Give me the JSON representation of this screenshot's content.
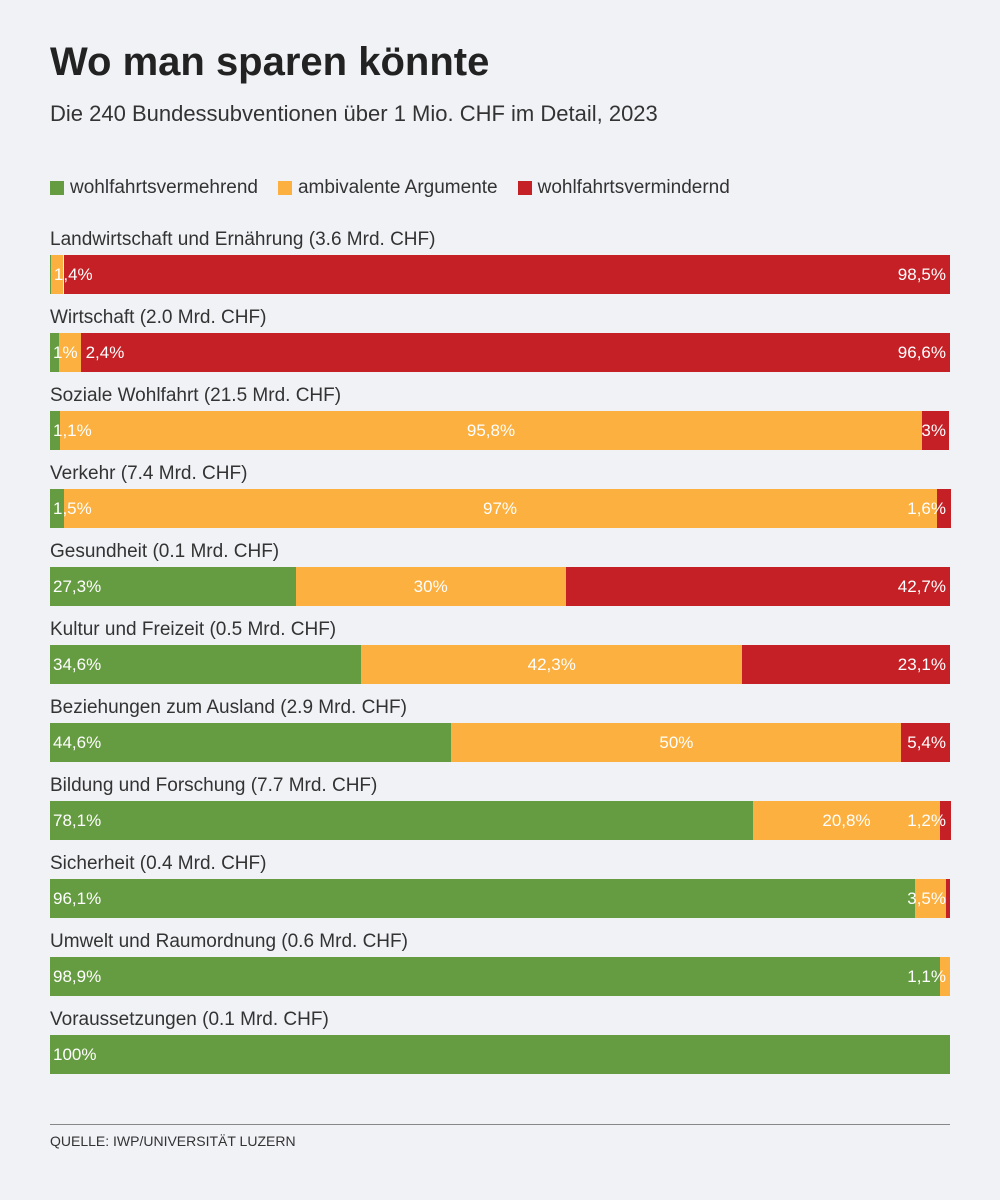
{
  "chart_data": {
    "type": "bar",
    "orientation": "horizontal",
    "stacked": "100%",
    "title": "Wo man sparen könnte",
    "subtitle": "Die 240 Bundessubventionen über 1 Mio. CHF im Detail, 2023",
    "legend_position": "top-left",
    "series": [
      {
        "name": "wohlfahrtsvermehrend",
        "color": "#659c41"
      },
      {
        "name": "ambivalente Argumente",
        "color": "#fbb040"
      },
      {
        "name": "wohlfahrtsvermindernd",
        "color": "#c42026"
      }
    ],
    "categories": [
      {
        "label": "Landwirtschaft und Ernährung (3.6 Mrd. CHF)",
        "values": [
          0.1,
          1.4,
          98.5
        ],
        "labels": [
          null,
          "1,4%",
          "98,5%"
        ]
      },
      {
        "label": "Wirtschaft (2.0 Mrd. CHF)",
        "values": [
          1,
          2.4,
          96.6
        ],
        "labels": [
          "1%",
          "2,4%",
          "96,6%"
        ]
      },
      {
        "label": "Soziale Wohlfahrt (21.5 Mrd. CHF)",
        "values": [
          1.1,
          95.8,
          3
        ],
        "labels": [
          "1,1%",
          "95,8%",
          "3%"
        ]
      },
      {
        "label": "Verkehr (7.4 Mrd. CHF)",
        "values": [
          1.5,
          97,
          1.6
        ],
        "labels": [
          "1,5%",
          "97%",
          "1,6%"
        ]
      },
      {
        "label": "Gesundheit (0.1 Mrd. CHF)",
        "values": [
          27.3,
          30,
          42.7
        ],
        "labels": [
          "27,3%",
          "30%",
          "42,7%"
        ]
      },
      {
        "label": "Kultur und Freizeit (0.5 Mrd. CHF)",
        "values": [
          34.6,
          42.3,
          23.1
        ],
        "labels": [
          "34,6%",
          "42,3%",
          "23,1%"
        ]
      },
      {
        "label": "Beziehungen zum Ausland (2.9 Mrd. CHF)",
        "values": [
          44.6,
          50,
          5.4
        ],
        "labels": [
          "44,6%",
          "50%",
          "5,4%"
        ]
      },
      {
        "label": "Bildung und Forschung (7.7 Mrd. CHF)",
        "values": [
          78.1,
          20.8,
          1.2
        ],
        "labels": [
          "78,1%",
          "20,8%",
          "1,2%"
        ]
      },
      {
        "label": "Sicherheit (0.4 Mrd. CHF)",
        "values": [
          96.1,
          3.5,
          0.4
        ],
        "labels": [
          "96,1%",
          "3,5%",
          null
        ]
      },
      {
        "label": "Umwelt und Raumordnung (0.6 Mrd. CHF)",
        "values": [
          98.9,
          1.1,
          0
        ],
        "labels": [
          "98,9%",
          "1,1%",
          null
        ]
      },
      {
        "label": "Voraussetzungen (0.1 Mrd. CHF)",
        "values": [
          100,
          0,
          0
        ],
        "labels": [
          "100%",
          null,
          null
        ]
      }
    ],
    "xlim": [
      0,
      100
    ]
  },
  "source": "QUELLE: IWP/UNIVERSITÄT LUZERN"
}
